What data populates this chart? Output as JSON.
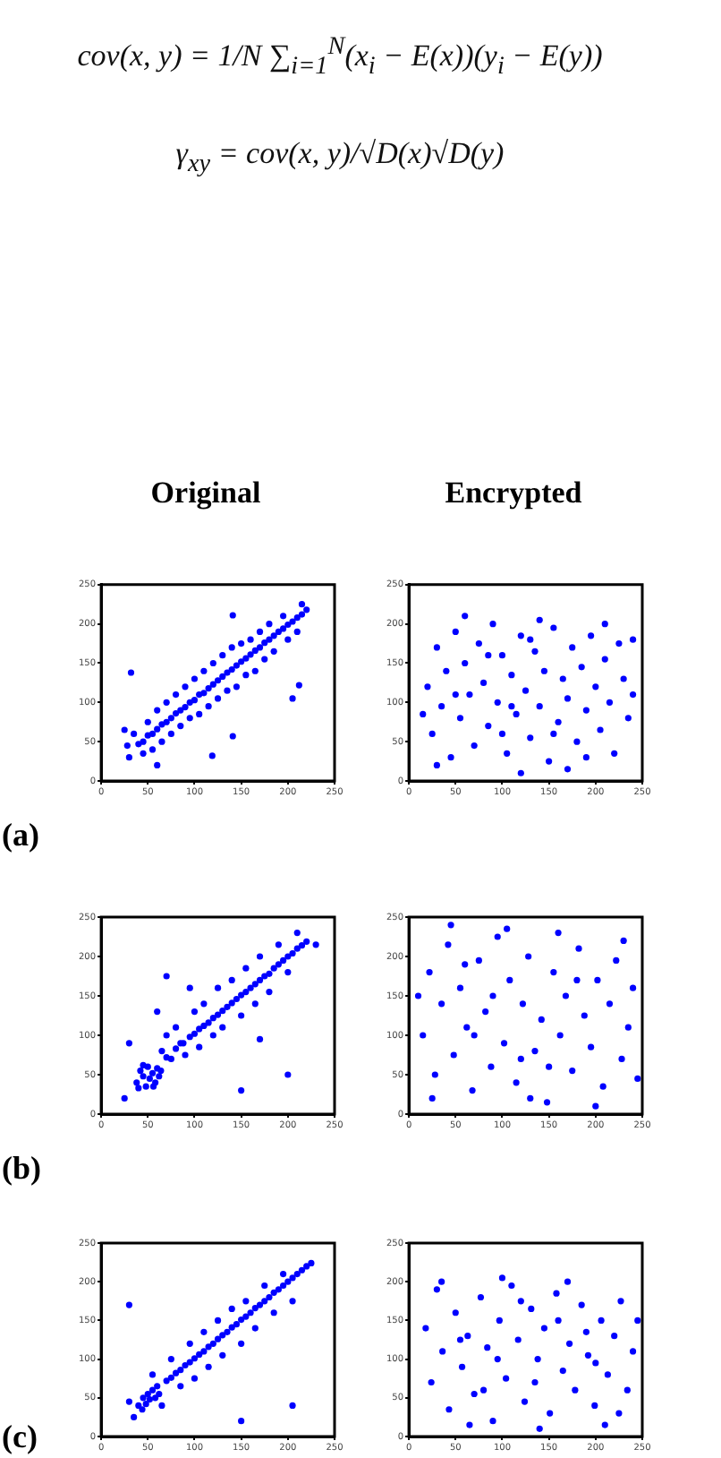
{
  "chart_data": [
    {
      "type": "other",
      "annotations": [
        "cov(x, y) = 1/N ∑$_{i=1}$$^{N}$(x$_{i}$ − E(x))(y$_{i}$ − E(y))",
        "γ$_{xy}$ = cov(x, y)/√D(x)√D(y)"
      ]
    },
    {
      "type": "scatter",
      "title": "Original",
      "annotations": [
        "(a)"
      ],
      "color": "#0000ff",
      "marker": "circle",
      "grid": false,
      "xlim": [
        0,
        250
      ],
      "ylim": [
        0,
        250
      ],
      "xticks": [
        0,
        50,
        100,
        150,
        200,
        250
      ],
      "yticks": [
        0,
        50,
        100,
        150,
        200,
        250
      ],
      "x": [
        40,
        45,
        50,
        55,
        60,
        65,
        70,
        75,
        80,
        85,
        90,
        95,
        100,
        105,
        110,
        115,
        120,
        125,
        130,
        135,
        140,
        145,
        150,
        155,
        160,
        165,
        170,
        175,
        180,
        185,
        190,
        195,
        200,
        205,
        210,
        215,
        220,
        30,
        28,
        35,
        45,
        50,
        55,
        60,
        65,
        70,
        75,
        80,
        85,
        90,
        95,
        100,
        105,
        110,
        115,
        120,
        125,
        130,
        135,
        140,
        145,
        150,
        155,
        160,
        165,
        170,
        175,
        180,
        185,
        195,
        200,
        210,
        215,
        32,
        141,
        119,
        205,
        141,
        212,
        25,
        60
      ],
      "values": [
        47,
        50,
        58,
        60,
        66,
        72,
        75,
        80,
        86,
        90,
        94,
        100,
        103,
        110,
        112,
        118,
        123,
        128,
        133,
        138,
        142,
        147,
        152,
        156,
        161,
        166,
        170,
        176,
        180,
        185,
        190,
        194,
        199,
        203,
        208,
        212,
        218,
        30,
        45,
        60,
        35,
        75,
        40,
        90,
        50,
        100,
        60,
        110,
        70,
        120,
        80,
        130,
        85,
        140,
        95,
        150,
        105,
        160,
        115,
        170,
        120,
        175,
        135,
        180,
        140,
        190,
        155,
        200,
        165,
        210,
        180,
        190,
        225,
        138,
        211,
        32,
        105,
        57,
        122,
        65,
        20
      ]
    },
    {
      "type": "scatter",
      "title": "Encrypted",
      "color": "#0000ff",
      "marker": "circle",
      "grid": false,
      "xlim": [
        0,
        250
      ],
      "ylim": [
        0,
        250
      ],
      "xticks": [
        0,
        50,
        100,
        150,
        200,
        250
      ],
      "yticks": [
        0,
        50,
        100,
        150,
        200,
        250
      ],
      "x": [
        20,
        25,
        30,
        35,
        40,
        45,
        50,
        55,
        60,
        65,
        70,
        75,
        80,
        85,
        90,
        95,
        100,
        105,
        110,
        115,
        120,
        125,
        130,
        135,
        140,
        145,
        150,
        155,
        160,
        165,
        170,
        175,
        180,
        185,
        190,
        195,
        200,
        205,
        210,
        215,
        220,
        225,
        230,
        235,
        240,
        30,
        60,
        100,
        140,
        170,
        210,
        120,
        85,
        50,
        155,
        190,
        240,
        15,
        130,
        110
      ],
      "values": [
        120,
        60,
        170,
        95,
        140,
        30,
        190,
        80,
        150,
        110,
        45,
        175,
        125,
        70,
        200,
        100,
        160,
        35,
        135,
        85,
        185,
        115,
        55,
        165,
        95,
        140,
        25,
        195,
        75,
        130,
        105,
        170,
        50,
        145,
        90,
        185,
        120,
        65,
        155,
        100,
        35,
        175,
        130,
        80,
        110,
        20,
        210,
        60,
        205,
        15,
        200,
        10,
        160,
        110,
        60,
        30,
        180,
        85,
        180,
        95
      ]
    },
    {
      "type": "scatter",
      "annotations": [
        "(b)"
      ],
      "color": "#0000ff",
      "marker": "circle",
      "grid": false,
      "xlim": [
        0,
        250
      ],
      "ylim": [
        0,
        250
      ],
      "xticks": [
        0,
        50,
        100,
        150,
        200,
        250
      ],
      "yticks": [
        0,
        50,
        100,
        150,
        200,
        250
      ],
      "x": [
        38,
        42,
        45,
        48,
        50,
        52,
        55,
        58,
        60,
        62,
        45,
        40,
        56,
        64,
        95,
        100,
        105,
        110,
        115,
        120,
        125,
        130,
        135,
        140,
        145,
        150,
        155,
        160,
        165,
        170,
        175,
        180,
        185,
        190,
        195,
        200,
        205,
        210,
        215,
        220,
        70,
        80,
        88,
        25,
        30,
        65,
        70,
        75,
        80,
        85,
        90,
        100,
        105,
        110,
        120,
        125,
        130,
        140,
        150,
        155,
        165,
        170,
        180,
        190,
        200,
        210,
        70,
        60,
        95,
        150,
        200,
        170,
        230
      ],
      "values": [
        40,
        55,
        48,
        35,
        60,
        45,
        52,
        40,
        58,
        48,
        62,
        33,
        35,
        55,
        98,
        102,
        108,
        112,
        116,
        122,
        126,
        131,
        136,
        141,
        146,
        151,
        155,
        160,
        165,
        170,
        175,
        178,
        185,
        190,
        195,
        200,
        204,
        210,
        214,
        219,
        72,
        83,
        90,
        20,
        90,
        80,
        100,
        70,
        110,
        90,
        75,
        130,
        85,
        140,
        100,
        160,
        110,
        170,
        125,
        185,
        140,
        200,
        155,
        215,
        180,
        230,
        175,
        130,
        160,
        30,
        50,
        95,
        215
      ]
    },
    {
      "type": "scatter",
      "color": "#0000ff",
      "marker": "circle",
      "grid": false,
      "xlim": [
        0,
        250
      ],
      "ylim": [
        0,
        250
      ],
      "xticks": [
        0,
        50,
        100,
        150,
        200,
        250
      ],
      "yticks": [
        0,
        50,
        100,
        150,
        200,
        250
      ],
      "x": [
        15,
        22,
        28,
        35,
        42,
        48,
        55,
        62,
        68,
        75,
        82,
        88,
        95,
        102,
        108,
        115,
        122,
        128,
        135,
        142,
        148,
        155,
        162,
        168,
        175,
        182,
        188,
        195,
        202,
        208,
        215,
        222,
        228,
        235,
        240,
        25,
        45,
        70,
        105,
        130,
        160,
        200,
        245,
        90,
        150,
        180,
        60,
        120,
        230,
        10
      ],
      "values": [
        100,
        180,
        50,
        140,
        215,
        75,
        160,
        110,
        30,
        195,
        130,
        60,
        225,
        90,
        170,
        40,
        140,
        200,
        80,
        120,
        15,
        180,
        100,
        150,
        55,
        210,
        125,
        85,
        170,
        35,
        140,
        195,
        70,
        110,
        160,
        20,
        240,
        100,
        235,
        20,
        230,
        10,
        45,
        150,
        60,
        170,
        190,
        70,
        220,
        150
      ]
    },
    {
      "type": "scatter",
      "annotations": [
        "(c)"
      ],
      "color": "#0000ff",
      "marker": "circle",
      "grid": false,
      "xlim": [
        0,
        250
      ],
      "ylim": [
        0,
        250
      ],
      "xticks": [
        0,
        50,
        100,
        150,
        200,
        250
      ],
      "yticks": [
        0,
        50,
        100,
        150,
        200,
        250
      ],
      "x": [
        40,
        45,
        48,
        50,
        52,
        55,
        58,
        60,
        44,
        35,
        62,
        70,
        75,
        80,
        85,
        90,
        95,
        100,
        105,
        110,
        115,
        120,
        125,
        130,
        135,
        140,
        145,
        150,
        155,
        160,
        165,
        170,
        175,
        180,
        185,
        190,
        195,
        200,
        205,
        210,
        215,
        220,
        225,
        30,
        55,
        65,
        75,
        85,
        95,
        100,
        110,
        115,
        125,
        130,
        140,
        150,
        155,
        165,
        175,
        185,
        195,
        205,
        30,
        150,
        205
      ],
      "values": [
        40,
        50,
        42,
        55,
        48,
        60,
        50,
        65,
        35,
        25,
        55,
        72,
        76,
        82,
        86,
        92,
        96,
        101,
        106,
        110,
        116,
        120,
        126,
        131,
        135,
        141,
        145,
        151,
        155,
        160,
        166,
        170,
        175,
        180,
        186,
        190,
        195,
        200,
        205,
        210,
        215,
        220,
        224,
        45,
        80,
        40,
        100,
        65,
        120,
        75,
        135,
        90,
        150,
        105,
        165,
        120,
        175,
        140,
        195,
        160,
        210,
        175,
        170,
        20,
        40
      ]
    },
    {
      "type": "scatter",
      "color": "#0000ff",
      "marker": "circle",
      "grid": false,
      "xlim": [
        0,
        250
      ],
      "ylim": [
        0,
        250
      ],
      "xticks": [
        0,
        50,
        100,
        150,
        200,
        250
      ],
      "yticks": [
        0,
        50,
        100,
        150,
        200,
        250
      ],
      "x": [
        18,
        24,
        30,
        36,
        43,
        50,
        57,
        63,
        70,
        77,
        84,
        90,
        97,
        104,
        110,
        117,
        124,
        131,
        138,
        145,
        151,
        158,
        165,
        172,
        178,
        185,
        192,
        199,
        206,
        213,
        220,
        227,
        234,
        240,
        35,
        65,
        100,
        140,
        170,
        210,
        245,
        80,
        120,
        160,
        200,
        55,
        95,
        135,
        190,
        225
      ],
      "values": [
        140,
        70,
        190,
        110,
        35,
        160,
        90,
        130,
        55,
        180,
        115,
        20,
        150,
        75,
        195,
        125,
        45,
        165,
        100,
        140,
        30,
        185,
        85,
        120,
        60,
        170,
        105,
        40,
        150,
        80,
        130,
        175,
        60,
        110,
        200,
        15,
        205,
        10,
        200,
        15,
        150,
        60,
        175,
        150,
        95,
        125,
        100,
        70,
        135,
        30
      ]
    }
  ]
}
